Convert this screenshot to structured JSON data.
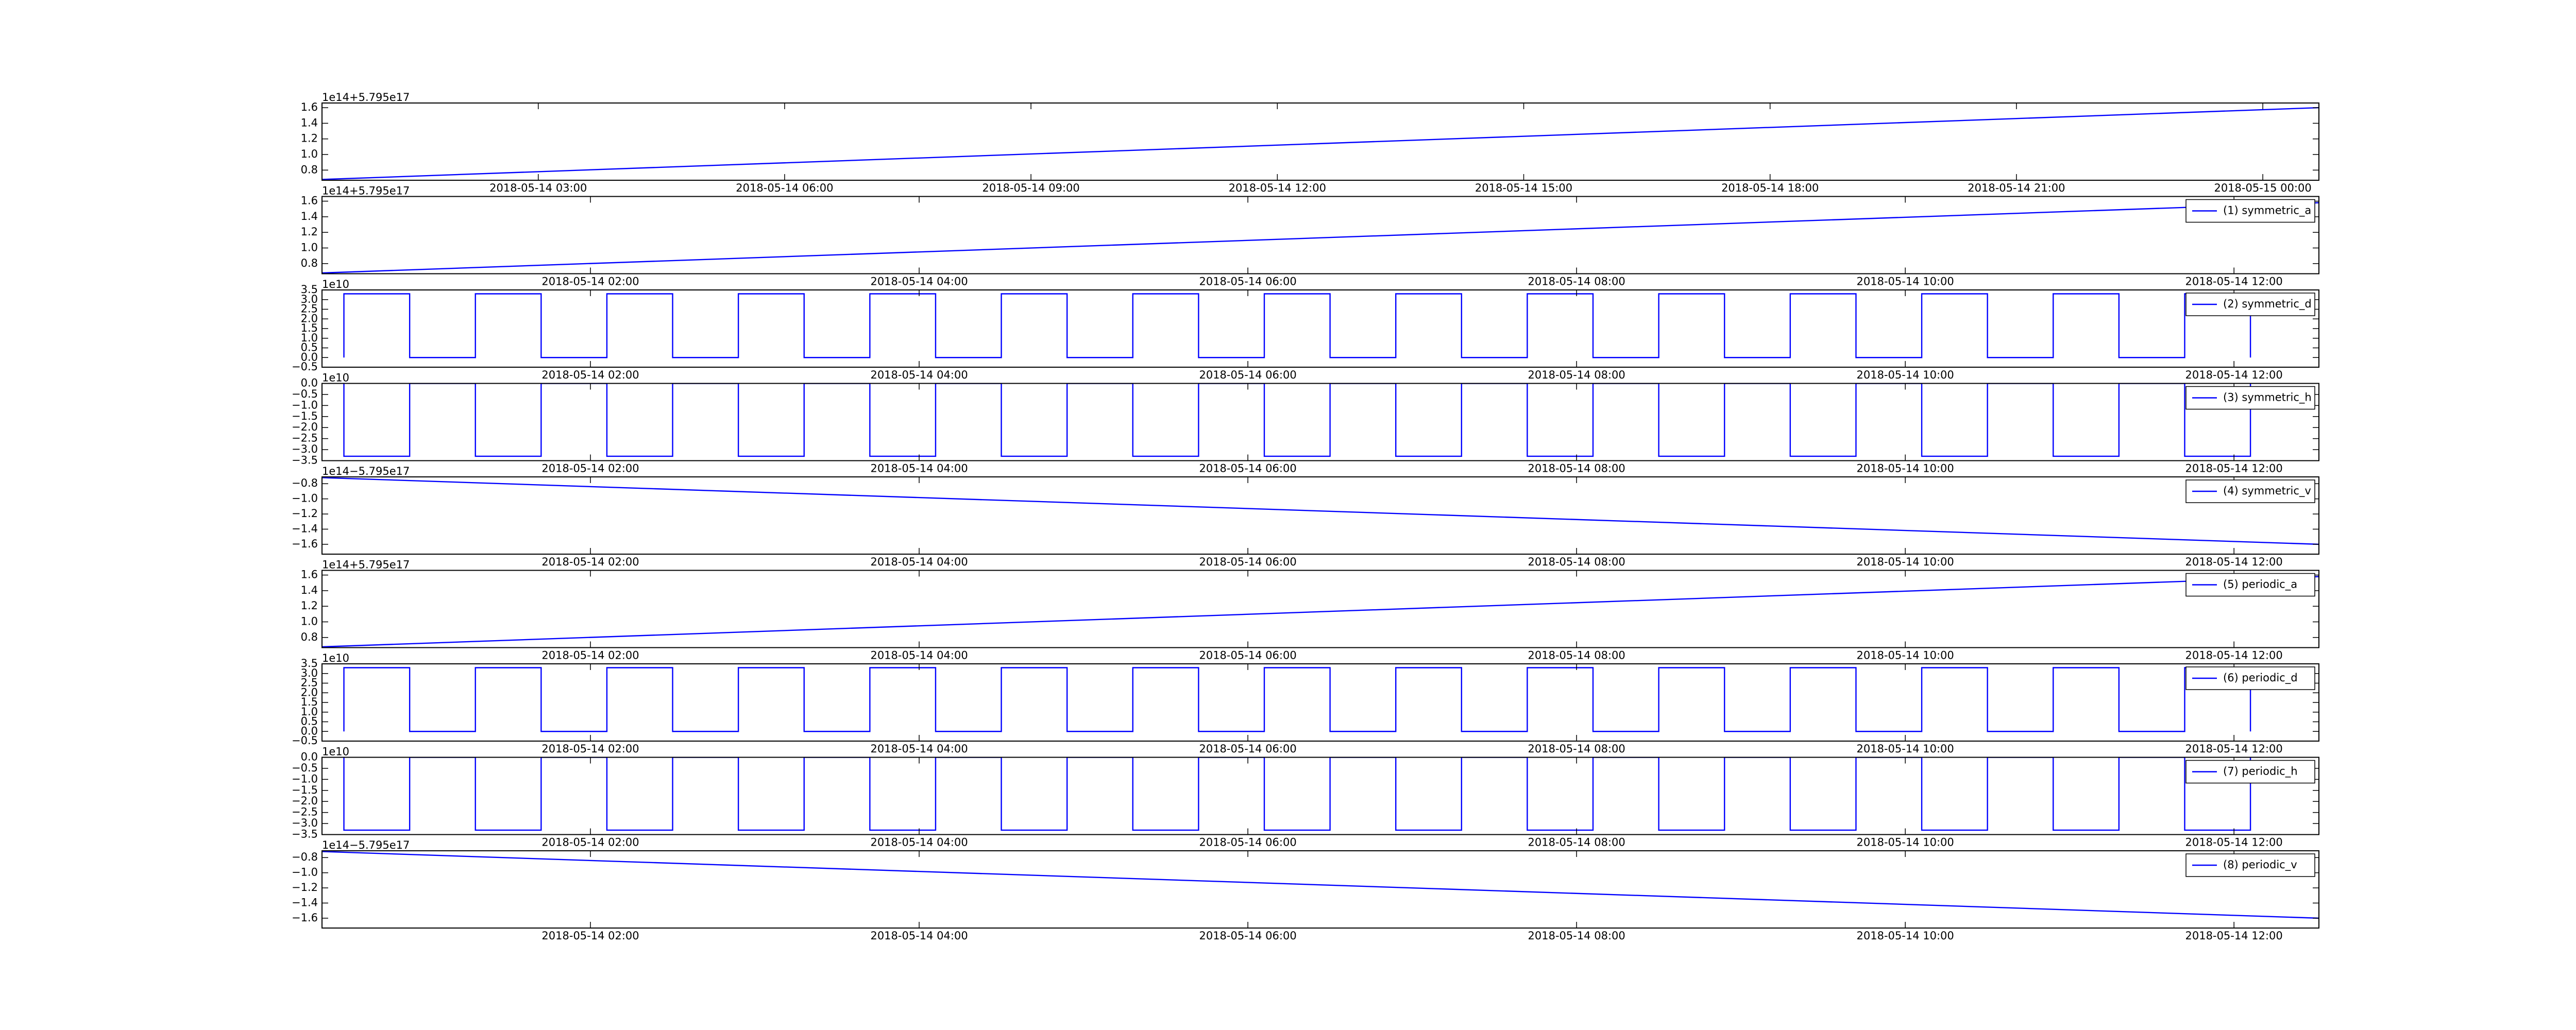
{
  "chart_data": [
    {
      "type": "line",
      "offset_text": "1e14+5.795e17",
      "xlim": [
        "2018-05-14 00:22",
        "2018-05-15 00:41"
      ],
      "xticks": [
        "2018-05-14 03:00",
        "2018-05-14 06:00",
        "2018-05-14 09:00",
        "2018-05-14 12:00",
        "2018-05-14 15:00",
        "2018-05-14 18:00",
        "2018-05-14 21:00",
        "2018-05-15 00:00"
      ],
      "ylim": [
        0.67,
        1.66
      ],
      "yticks": [
        0.8,
        {
          "value": 1,
          "label": "1.0"
        },
        1.2,
        1.4,
        1.6
      ],
      "x": [
        "2018-05-14 00:22",
        "2018-05-15 00:41"
      ],
      "series": [
        {
          "color": "#0000ff",
          "values": [
            0.68,
            1.6
          ]
        }
      ]
    },
    {
      "type": "line",
      "offset_text": "1e14+5.795e17",
      "legend": "upper right",
      "xlim": [
        "2018-05-14 00:22",
        "2018-05-14 12:31"
      ],
      "xticks": [
        "2018-05-14 02:00",
        "2018-05-14 04:00",
        "2018-05-14 06:00",
        "2018-05-14 08:00",
        "2018-05-14 10:00",
        "2018-05-14 12:00"
      ],
      "ylim": [
        0.67,
        1.66
      ],
      "yticks": [
        0.8,
        {
          "value": 1,
          "label": "1.0"
        },
        1.2,
        1.4,
        1.6
      ],
      "x": [
        "2018-05-14 00:22",
        "2018-05-14 12:31"
      ],
      "series": [
        {
          "name": "(1) symmetric_a",
          "color": "#0000ff",
          "values": [
            0.68,
            1.58
          ]
        }
      ]
    },
    {
      "type": "line",
      "offset_text": "1e10",
      "legend": "upper right",
      "xlim": [
        "2018-05-14 00:22",
        "2018-05-14 12:31"
      ],
      "xticks": [
        "2018-05-14 02:00",
        "2018-05-14 04:00",
        "2018-05-14 06:00",
        "2018-05-14 08:00",
        "2018-05-14 10:00",
        "2018-05-14 12:00"
      ],
      "ylim": [
        -0.5,
        3.5
      ],
      "yticks": [
        {
          "value": -0.5,
          "label": "−0.5"
        },
        {
          "value": 0,
          "label": "0.0"
        },
        0.5,
        {
          "value": 1,
          "label": "1.0"
        },
        1.5,
        {
          "value": 2,
          "label": "2.0"
        },
        2.5,
        {
          "value": 3,
          "label": "3.0"
        },
        3.5
      ],
      "x": [
        "2018-05-14 00:30",
        "2018-05-14 00:30",
        "2018-05-14 00:54",
        "2018-05-14 00:54",
        "2018-05-14 01:18",
        "2018-05-14 01:18",
        "2018-05-14 01:42",
        "2018-05-14 01:42",
        "2018-05-14 02:06",
        "2018-05-14 02:06",
        "2018-05-14 02:30",
        "2018-05-14 02:30",
        "2018-05-14 02:54",
        "2018-05-14 02:54",
        "2018-05-14 03:18",
        "2018-05-14 03:18",
        "2018-05-14 03:42",
        "2018-05-14 03:42",
        "2018-05-14 04:06",
        "2018-05-14 04:06",
        "2018-05-14 04:30",
        "2018-05-14 04:30",
        "2018-05-14 04:54",
        "2018-05-14 04:54",
        "2018-05-14 05:18",
        "2018-05-14 05:18",
        "2018-05-14 05:42",
        "2018-05-14 05:42",
        "2018-05-14 06:06",
        "2018-05-14 06:06",
        "2018-05-14 06:30",
        "2018-05-14 06:30",
        "2018-05-14 06:54",
        "2018-05-14 06:54",
        "2018-05-14 07:18",
        "2018-05-14 07:18",
        "2018-05-14 07:42",
        "2018-05-14 07:42",
        "2018-05-14 08:06",
        "2018-05-14 08:06",
        "2018-05-14 08:30",
        "2018-05-14 08:30",
        "2018-05-14 08:54",
        "2018-05-14 08:54",
        "2018-05-14 09:18",
        "2018-05-14 09:18",
        "2018-05-14 09:42",
        "2018-05-14 09:42",
        "2018-05-14 10:06",
        "2018-05-14 10:06",
        "2018-05-14 10:30",
        "2018-05-14 10:30",
        "2018-05-14 10:54",
        "2018-05-14 10:54",
        "2018-05-14 11:18",
        "2018-05-14 11:18",
        "2018-05-14 11:42",
        "2018-05-14 11:42",
        "2018-05-14 12:06",
        "2018-05-14 12:06"
      ],
      "series": [
        {
          "name": "(2) symmetric_d",
          "color": "#0000ff",
          "values": [
            0,
            3.3,
            3.3,
            0,
            0,
            3.3,
            3.3,
            0,
            0,
            3.3,
            3.3,
            0,
            0,
            3.3,
            3.3,
            0,
            0,
            3.3,
            3.3,
            0,
            0,
            3.3,
            3.3,
            0,
            0,
            3.3,
            3.3,
            0,
            0,
            3.3,
            3.3,
            0,
            0,
            3.3,
            3.3,
            0,
            0,
            3.3,
            3.3,
            0,
            0,
            3.3,
            3.3,
            0,
            0,
            3.3,
            3.3,
            0,
            0,
            3.3,
            3.3,
            0,
            0,
            3.3,
            3.3,
            0,
            0,
            3.3,
            3.3,
            0
          ]
        }
      ]
    },
    {
      "type": "line",
      "offset_text": "1e10",
      "legend": "upper right",
      "xlim": [
        "2018-05-14 00:22",
        "2018-05-14 12:31"
      ],
      "xticks": [
        "2018-05-14 02:00",
        "2018-05-14 04:00",
        "2018-05-14 06:00",
        "2018-05-14 08:00",
        "2018-05-14 10:00",
        "2018-05-14 12:00"
      ],
      "ylim": [
        -3.5,
        0
      ],
      "yticks": [
        {
          "value": -3.5,
          "label": "−3.5"
        },
        {
          "value": -3,
          "label": "−3.0"
        },
        {
          "value": -2.5,
          "label": "−2.5"
        },
        {
          "value": -2,
          "label": "−2.0"
        },
        {
          "value": -1.5,
          "label": "−1.5"
        },
        {
          "value": -1,
          "label": "−1.0"
        },
        {
          "value": -0.5,
          "label": "−0.5"
        },
        {
          "value": 0,
          "label": "0.0"
        }
      ],
      "x": [
        "2018-05-14 00:30",
        "2018-05-14 00:30",
        "2018-05-14 00:54",
        "2018-05-14 00:54",
        "2018-05-14 01:18",
        "2018-05-14 01:18",
        "2018-05-14 01:42",
        "2018-05-14 01:42",
        "2018-05-14 02:06",
        "2018-05-14 02:06",
        "2018-05-14 02:30",
        "2018-05-14 02:30",
        "2018-05-14 02:54",
        "2018-05-14 02:54",
        "2018-05-14 03:18",
        "2018-05-14 03:18",
        "2018-05-14 03:42",
        "2018-05-14 03:42",
        "2018-05-14 04:06",
        "2018-05-14 04:06",
        "2018-05-14 04:30",
        "2018-05-14 04:30",
        "2018-05-14 04:54",
        "2018-05-14 04:54",
        "2018-05-14 05:18",
        "2018-05-14 05:18",
        "2018-05-14 05:42",
        "2018-05-14 05:42",
        "2018-05-14 06:06",
        "2018-05-14 06:06",
        "2018-05-14 06:30",
        "2018-05-14 06:30",
        "2018-05-14 06:54",
        "2018-05-14 06:54",
        "2018-05-14 07:18",
        "2018-05-14 07:18",
        "2018-05-14 07:42",
        "2018-05-14 07:42",
        "2018-05-14 08:06",
        "2018-05-14 08:06",
        "2018-05-14 08:30",
        "2018-05-14 08:30",
        "2018-05-14 08:54",
        "2018-05-14 08:54",
        "2018-05-14 09:18",
        "2018-05-14 09:18",
        "2018-05-14 09:42",
        "2018-05-14 09:42",
        "2018-05-14 10:06",
        "2018-05-14 10:06",
        "2018-05-14 10:30",
        "2018-05-14 10:30",
        "2018-05-14 10:54",
        "2018-05-14 10:54",
        "2018-05-14 11:18",
        "2018-05-14 11:18",
        "2018-05-14 11:42",
        "2018-05-14 11:42",
        "2018-05-14 12:06",
        "2018-05-14 12:06"
      ],
      "series": [
        {
          "name": "(3) symmetric_h",
          "color": "#0000ff",
          "values": [
            0,
            -3.3,
            -3.3,
            0,
            0,
            -3.3,
            -3.3,
            0,
            0,
            -3.3,
            -3.3,
            0,
            0,
            -3.3,
            -3.3,
            0,
            0,
            -3.3,
            -3.3,
            0,
            0,
            -3.3,
            -3.3,
            0,
            0,
            -3.3,
            -3.3,
            0,
            0,
            -3.3,
            -3.3,
            0,
            0,
            -3.3,
            -3.3,
            0,
            0,
            -3.3,
            -3.3,
            0,
            0,
            -3.3,
            -3.3,
            0,
            0,
            -3.3,
            -3.3,
            0,
            0,
            -3.3,
            -3.3,
            0,
            0,
            -3.3,
            -3.3,
            0,
            0,
            -3.3,
            -3.3,
            0
          ]
        }
      ]
    },
    {
      "type": "line",
      "offset_text": "1e14−5.795e17",
      "legend": "upper right",
      "xlim": [
        "2018-05-14 00:22",
        "2018-05-14 12:31"
      ],
      "xticks": [
        "2018-05-14 02:00",
        "2018-05-14 04:00",
        "2018-05-14 06:00",
        "2018-05-14 08:00",
        "2018-05-14 10:00",
        "2018-05-14 12:00"
      ],
      "ylim": [
        -1.73,
        -0.71
      ],
      "yticks": [
        {
          "value": -1.6,
          "label": "−1.6"
        },
        {
          "value": -1.4,
          "label": "−1.4"
        },
        {
          "value": -1.2,
          "label": "−1.2"
        },
        {
          "value": -1,
          "label": "−1.0"
        },
        {
          "value": -0.8,
          "label": "−0.8"
        }
      ],
      "x": [
        "2018-05-14 00:22",
        "2018-05-14 12:31"
      ],
      "series": [
        {
          "name": "(4) symmetric_v",
          "color": "#0000ff",
          "values": [
            -0.72,
            -1.6
          ]
        }
      ]
    },
    {
      "type": "line",
      "offset_text": "1e14+5.795e17",
      "legend": "upper right",
      "xlim": [
        "2018-05-14 00:22",
        "2018-05-14 12:31"
      ],
      "xticks": [
        "2018-05-14 02:00",
        "2018-05-14 04:00",
        "2018-05-14 06:00",
        "2018-05-14 08:00",
        "2018-05-14 10:00",
        "2018-05-14 12:00"
      ],
      "ylim": [
        0.67,
        1.66
      ],
      "yticks": [
        0.8,
        {
          "value": 1,
          "label": "1.0"
        },
        1.2,
        1.4,
        1.6
      ],
      "x": [
        "2018-05-14 00:22",
        "2018-05-14 12:31"
      ],
      "series": [
        {
          "name": "(5) periodic_a",
          "color": "#0000ff",
          "values": [
            0.68,
            1.58
          ]
        }
      ]
    },
    {
      "type": "line",
      "offset_text": "1e10",
      "legend": "upper right",
      "xlim": [
        "2018-05-14 00:22",
        "2018-05-14 12:31"
      ],
      "xticks": [
        "2018-05-14 02:00",
        "2018-05-14 04:00",
        "2018-05-14 06:00",
        "2018-05-14 08:00",
        "2018-05-14 10:00",
        "2018-05-14 12:00"
      ],
      "ylim": [
        -0.5,
        3.5
      ],
      "yticks": [
        {
          "value": -0.5,
          "label": "−0.5"
        },
        {
          "value": 0,
          "label": "0.0"
        },
        0.5,
        {
          "value": 1,
          "label": "1.0"
        },
        1.5,
        {
          "value": 2,
          "label": "2.0"
        },
        2.5,
        {
          "value": 3,
          "label": "3.0"
        },
        3.5
      ],
      "x": [
        "2018-05-14 00:30",
        "2018-05-14 00:30",
        "2018-05-14 00:54",
        "2018-05-14 00:54",
        "2018-05-14 01:18",
        "2018-05-14 01:18",
        "2018-05-14 01:42",
        "2018-05-14 01:42",
        "2018-05-14 02:06",
        "2018-05-14 02:06",
        "2018-05-14 02:30",
        "2018-05-14 02:30",
        "2018-05-14 02:54",
        "2018-05-14 02:54",
        "2018-05-14 03:18",
        "2018-05-14 03:18",
        "2018-05-14 03:42",
        "2018-05-14 03:42",
        "2018-05-14 04:06",
        "2018-05-14 04:06",
        "2018-05-14 04:30",
        "2018-05-14 04:30",
        "2018-05-14 04:54",
        "2018-05-14 04:54",
        "2018-05-14 05:18",
        "2018-05-14 05:18",
        "2018-05-14 05:42",
        "2018-05-14 05:42",
        "2018-05-14 06:06",
        "2018-05-14 06:06",
        "2018-05-14 06:30",
        "2018-05-14 06:30",
        "2018-05-14 06:54",
        "2018-05-14 06:54",
        "2018-05-14 07:18",
        "2018-05-14 07:18",
        "2018-05-14 07:42",
        "2018-05-14 07:42",
        "2018-05-14 08:06",
        "2018-05-14 08:06",
        "2018-05-14 08:30",
        "2018-05-14 08:30",
        "2018-05-14 08:54",
        "2018-05-14 08:54",
        "2018-05-14 09:18",
        "2018-05-14 09:18",
        "2018-05-14 09:42",
        "2018-05-14 09:42",
        "2018-05-14 10:06",
        "2018-05-14 10:06",
        "2018-05-14 10:30",
        "2018-05-14 10:30",
        "2018-05-14 10:54",
        "2018-05-14 10:54",
        "2018-05-14 11:18",
        "2018-05-14 11:18",
        "2018-05-14 11:42",
        "2018-05-14 11:42",
        "2018-05-14 12:06",
        "2018-05-14 12:06"
      ],
      "series": [
        {
          "name": "(6) periodic_d",
          "color": "#0000ff",
          "values": [
            0,
            3.3,
            3.3,
            0,
            0,
            3.3,
            3.3,
            0,
            0,
            3.3,
            3.3,
            0,
            0,
            3.3,
            3.3,
            0,
            0,
            3.3,
            3.3,
            0,
            0,
            3.3,
            3.3,
            0,
            0,
            3.3,
            3.3,
            0,
            0,
            3.3,
            3.3,
            0,
            0,
            3.3,
            3.3,
            0,
            0,
            3.3,
            3.3,
            0,
            0,
            3.3,
            3.3,
            0,
            0,
            3.3,
            3.3,
            0,
            0,
            3.3,
            3.3,
            0,
            0,
            3.3,
            3.3,
            0,
            0,
            3.3,
            3.3,
            0
          ]
        }
      ]
    },
    {
      "type": "line",
      "offset_text": "1e10",
      "legend": "upper right",
      "xlim": [
        "2018-05-14 00:22",
        "2018-05-14 12:31"
      ],
      "xticks": [
        "2018-05-14 02:00",
        "2018-05-14 04:00",
        "2018-05-14 06:00",
        "2018-05-14 08:00",
        "2018-05-14 10:00",
        "2018-05-14 12:00"
      ],
      "ylim": [
        -3.5,
        0
      ],
      "yticks": [
        {
          "value": -3.5,
          "label": "−3.5"
        },
        {
          "value": -3,
          "label": "−3.0"
        },
        {
          "value": -2.5,
          "label": "−2.5"
        },
        {
          "value": -2,
          "label": "−2.0"
        },
        {
          "value": -1.5,
          "label": "−1.5"
        },
        {
          "value": -1,
          "label": "−1.0"
        },
        {
          "value": -0.5,
          "label": "−0.5"
        },
        {
          "value": 0,
          "label": "0.0"
        }
      ],
      "x": [
        "2018-05-14 00:30",
        "2018-05-14 00:30",
        "2018-05-14 00:54",
        "2018-05-14 00:54",
        "2018-05-14 01:18",
        "2018-05-14 01:18",
        "2018-05-14 01:42",
        "2018-05-14 01:42",
        "2018-05-14 02:06",
        "2018-05-14 02:06",
        "2018-05-14 02:30",
        "2018-05-14 02:30",
        "2018-05-14 02:54",
        "2018-05-14 02:54",
        "2018-05-14 03:18",
        "2018-05-14 03:18",
        "2018-05-14 03:42",
        "2018-05-14 03:42",
        "2018-05-14 04:06",
        "2018-05-14 04:06",
        "2018-05-14 04:30",
        "2018-05-14 04:30",
        "2018-05-14 04:54",
        "2018-05-14 04:54",
        "2018-05-14 05:18",
        "2018-05-14 05:18",
        "2018-05-14 05:42",
        "2018-05-14 05:42",
        "2018-05-14 06:06",
        "2018-05-14 06:06",
        "2018-05-14 06:30",
        "2018-05-14 06:30",
        "2018-05-14 06:54",
        "2018-05-14 06:54",
        "2018-05-14 07:18",
        "2018-05-14 07:18",
        "2018-05-14 07:42",
        "2018-05-14 07:42",
        "2018-05-14 08:06",
        "2018-05-14 08:06",
        "2018-05-14 08:30",
        "2018-05-14 08:30",
        "2018-05-14 08:54",
        "2018-05-14 08:54",
        "2018-05-14 09:18",
        "2018-05-14 09:18",
        "2018-05-14 09:42",
        "2018-05-14 09:42",
        "2018-05-14 10:06",
        "2018-05-14 10:06",
        "2018-05-14 10:30",
        "2018-05-14 10:30",
        "2018-05-14 10:54",
        "2018-05-14 10:54",
        "2018-05-14 11:18",
        "2018-05-14 11:18",
        "2018-05-14 11:42",
        "2018-05-14 11:42",
        "2018-05-14 12:06",
        "2018-05-14 12:06"
      ],
      "series": [
        {
          "name": "(7) periodic_h",
          "color": "#0000ff",
          "values": [
            0,
            -3.3,
            -3.3,
            0,
            0,
            -3.3,
            -3.3,
            0,
            0,
            -3.3,
            -3.3,
            0,
            0,
            -3.3,
            -3.3,
            0,
            0,
            -3.3,
            -3.3,
            0,
            0,
            -3.3,
            -3.3,
            0,
            0,
            -3.3,
            -3.3,
            0,
            0,
            -3.3,
            -3.3,
            0,
            0,
            -3.3,
            -3.3,
            0,
            0,
            -3.3,
            -3.3,
            0,
            0,
            -3.3,
            -3.3,
            0,
            0,
            -3.3,
            -3.3,
            0,
            0,
            -3.3,
            -3.3,
            0,
            0,
            -3.3,
            -3.3,
            0,
            0,
            -3.3,
            -3.3,
            0
          ]
        }
      ]
    },
    {
      "type": "line",
      "offset_text": "1e14−5.795e17",
      "legend": "upper right",
      "xlim": [
        "2018-05-14 00:22",
        "2018-05-14 12:31"
      ],
      "xticks": [
        "2018-05-14 02:00",
        "2018-05-14 04:00",
        "2018-05-14 06:00",
        "2018-05-14 08:00",
        "2018-05-14 10:00",
        "2018-05-14 12:00"
      ],
      "ylim": [
        -1.73,
        -0.71
      ],
      "yticks": [
        {
          "value": -1.6,
          "label": "−1.6"
        },
        {
          "value": -1.4,
          "label": "−1.4"
        },
        {
          "value": -1.2,
          "label": "−1.2"
        },
        {
          "value": -1,
          "label": "−1.0"
        },
        {
          "value": -0.8,
          "label": "−0.8"
        }
      ],
      "x": [
        "2018-05-14 00:22",
        "2018-05-14 12:31"
      ],
      "series": [
        {
          "name": "(8) periodic_v",
          "color": "#0000ff",
          "values": [
            -0.72,
            -1.6
          ]
        }
      ]
    }
  ]
}
